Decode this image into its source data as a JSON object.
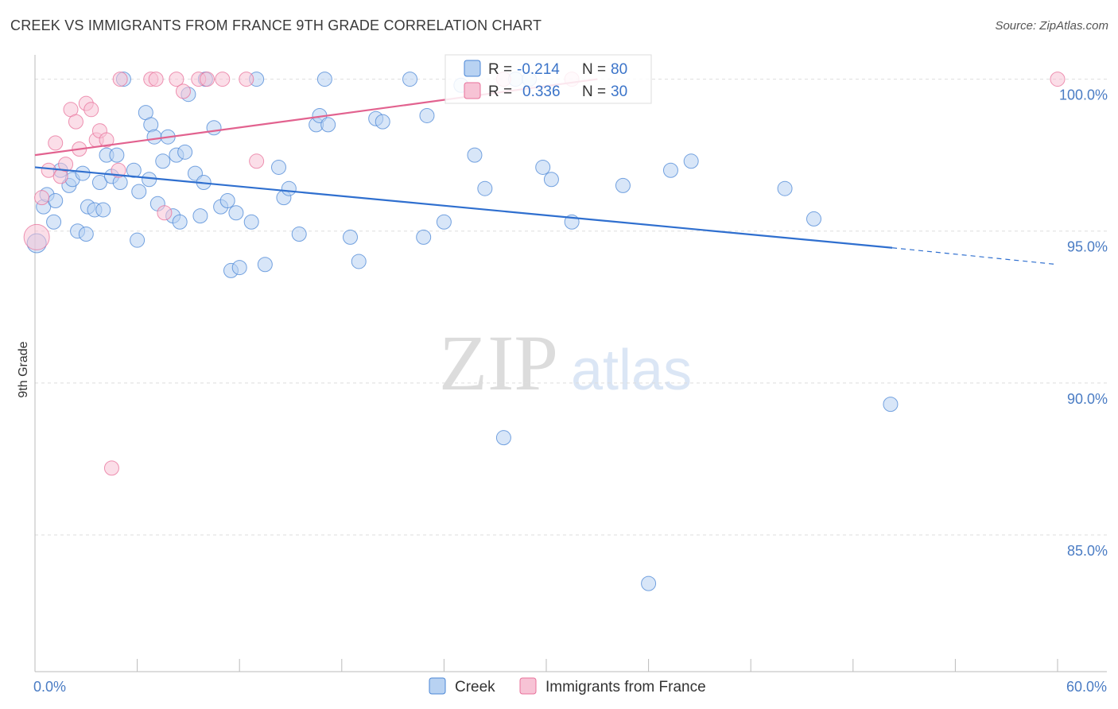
{
  "title": "CREEK VS IMMIGRANTS FROM FRANCE 9TH GRADE CORRELATION CHART",
  "source": "Source: ZipAtlas.com",
  "watermark": {
    "zip": "ZIP",
    "atlas": "atlas"
  },
  "colors": {
    "creek": "#4a86d6",
    "creek_fill": "#b8d2f2",
    "france": "#e8709a",
    "france_fill": "#f7c3d5",
    "grid": "#dddddd",
    "tick": "#4a7cc4"
  },
  "chart_data": {
    "type": "scatter",
    "title": "CREEK VS IMMIGRANTS FROM FRANCE 9TH GRADE CORRELATION CHART",
    "ylabel": "9th Grade",
    "xlim": [
      0,
      60
    ],
    "ylim": [
      80.5,
      100.8
    ],
    "x_tick_labels": [
      {
        "value": 0,
        "label": "0.0%"
      },
      {
        "value": 60,
        "label": "60.0%"
      }
    ],
    "y_ticks": [
      {
        "value": 100,
        "label": "100.0%"
      },
      {
        "value": 95,
        "label": "95.0%"
      },
      {
        "value": 90,
        "label": "90.0%"
      },
      {
        "value": 85,
        "label": "85.0%"
      }
    ],
    "legend": [
      {
        "series": "Creek",
        "r_label": "R =",
        "r": "-0.214",
        "n_label": "N =",
        "n": "80"
      },
      {
        "series": "Immigrants from France",
        "r_label": "R =",
        "r": "0.336",
        "n_label": "N =",
        "n": "30"
      }
    ],
    "series": [
      {
        "name": "Creek",
        "trend": {
          "x0": 0,
          "y0": 97.1,
          "x1": 50.3,
          "y1": 94.45,
          "dash_to_x": 60,
          "dash_to_y": 93.9
        },
        "points": [
          [
            0.1,
            94.6
          ],
          [
            0.5,
            95.8
          ],
          [
            0.7,
            96.2
          ],
          [
            1.2,
            96.0
          ],
          [
            1.1,
            95.3
          ],
          [
            2.0,
            96.5
          ],
          [
            2.2,
            96.7
          ],
          [
            2.5,
            95.0
          ],
          [
            2.8,
            96.9
          ],
          [
            3.1,
            95.8
          ],
          [
            3.5,
            95.7
          ],
          [
            3.8,
            96.6
          ],
          [
            4.0,
            95.7
          ],
          [
            4.2,
            97.5
          ],
          [
            4.5,
            96.8
          ],
          [
            4.8,
            97.5
          ],
          [
            5.0,
            96.6
          ],
          [
            5.2,
            100.0
          ],
          [
            5.8,
            97.0
          ],
          [
            6.1,
            96.3
          ],
          [
            6.5,
            98.9
          ],
          [
            6.7,
            96.7
          ],
          [
            6.8,
            98.5
          ],
          [
            7.0,
            98.1
          ],
          [
            7.2,
            95.9
          ],
          [
            7.5,
            97.3
          ],
          [
            7.8,
            98.1
          ],
          [
            8.1,
            95.5
          ],
          [
            8.3,
            97.5
          ],
          [
            8.5,
            95.3
          ],
          [
            8.8,
            97.6
          ],
          [
            9.0,
            99.5
          ],
          [
            9.4,
            96.9
          ],
          [
            9.7,
            95.5
          ],
          [
            9.9,
            96.6
          ],
          [
            10.5,
            98.4
          ],
          [
            10.9,
            95.8
          ],
          [
            11.3,
            96.0
          ],
          [
            11.5,
            93.7
          ],
          [
            11.8,
            95.6
          ],
          [
            12.0,
            93.8
          ],
          [
            12.7,
            95.3
          ],
          [
            13.0,
            100.0
          ],
          [
            14.3,
            97.1
          ],
          [
            14.6,
            96.1
          ],
          [
            14.9,
            96.4
          ],
          [
            15.5,
            94.9
          ],
          [
            16.5,
            98.5
          ],
          [
            16.7,
            98.8
          ],
          [
            17.2,
            98.5
          ],
          [
            18.5,
            94.8
          ],
          [
            19.0,
            94.0
          ],
          [
            20.0,
            98.7
          ],
          [
            20.4,
            98.6
          ],
          [
            22.8,
            94.8
          ],
          [
            23.0,
            98.8
          ],
          [
            24.0,
            95.3
          ],
          [
            25.8,
            97.5
          ],
          [
            26.4,
            96.4
          ],
          [
            27.5,
            88.2
          ],
          [
            28.2,
            100.0
          ],
          [
            29.0,
            100.0
          ],
          [
            29.8,
            97.1
          ],
          [
            30.3,
            96.7
          ],
          [
            31.5,
            95.3
          ],
          [
            34.5,
            96.5
          ],
          [
            36.0,
            83.4
          ],
          [
            37.3,
            97.0
          ],
          [
            38.5,
            97.3
          ],
          [
            44.0,
            96.4
          ],
          [
            45.7,
            95.4
          ],
          [
            50.2,
            89.3
          ],
          [
            1.5,
            97.0
          ],
          [
            3.0,
            94.9
          ],
          [
            6.0,
            94.7
          ],
          [
            10.0,
            100.0
          ],
          [
            13.5,
            93.9
          ],
          [
            22.0,
            100.0
          ],
          [
            17.0,
            100.0
          ],
          [
            25.0,
            99.8
          ]
        ]
      },
      {
        "name": "Immigrants from France",
        "trend": {
          "x0": 0,
          "y0": 97.5,
          "x1": 33.0,
          "y1": 100.0
        },
        "points": [
          [
            0.1,
            94.8
          ],
          [
            0.4,
            96.1
          ],
          [
            0.8,
            97.0
          ],
          [
            1.2,
            97.9
          ],
          [
            1.5,
            96.8
          ],
          [
            1.8,
            97.2
          ],
          [
            2.1,
            99.0
          ],
          [
            2.4,
            98.6
          ],
          [
            2.6,
            97.7
          ],
          [
            3.0,
            99.2
          ],
          [
            3.3,
            99.0
          ],
          [
            3.6,
            98.0
          ],
          [
            3.8,
            98.3
          ],
          [
            4.2,
            98.0
          ],
          [
            4.5,
            87.2
          ],
          [
            4.9,
            97.0
          ],
          [
            5.0,
            100.0
          ],
          [
            6.8,
            100.0
          ],
          [
            7.1,
            100.0
          ],
          [
            7.6,
            95.6
          ],
          [
            8.3,
            100.0
          ],
          [
            8.7,
            99.6
          ],
          [
            9.6,
            100.0
          ],
          [
            10.1,
            100.0
          ],
          [
            11.0,
            100.0
          ],
          [
            12.4,
            100.0
          ],
          [
            13.0,
            97.3
          ],
          [
            27.5,
            100.0
          ],
          [
            31.5,
            100.0
          ],
          [
            60.0,
            100.0
          ]
        ]
      }
    ]
  }
}
